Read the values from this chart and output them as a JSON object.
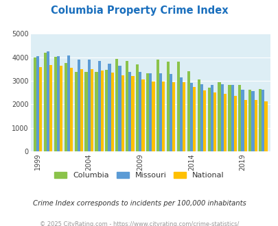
{
  "title": "Columbia Property Crime Index",
  "title_color": "#1a6fbd",
  "subtitle": "Crime Index corresponds to incidents per 100,000 inhabitants",
  "footer": "© 2025 CityRating.com - https://www.cityrating.com/crime-statistics/",
  "years": [
    1999,
    2000,
    2001,
    2002,
    2003,
    2004,
    2005,
    2006,
    2007,
    2008,
    2009,
    2010,
    2011,
    2012,
    2013,
    2014,
    2015,
    2016,
    2017,
    2018,
    2019,
    2020,
    2021
  ],
  "columbia": [
    3990,
    4210,
    4030,
    3750,
    3380,
    3390,
    3390,
    3480,
    3950,
    3860,
    3700,
    3330,
    3920,
    3830,
    3820,
    3420,
    3060,
    2700,
    2960,
    2840,
    2820,
    2620,
    2640
  ],
  "missouri": [
    4040,
    4250,
    4060,
    4080,
    3900,
    3920,
    3840,
    3740,
    3650,
    3380,
    3370,
    3330,
    3320,
    3300,
    3160,
    2930,
    2870,
    2830,
    2850,
    2830,
    2620,
    2580,
    2620
  ],
  "national": [
    3600,
    3670,
    3640,
    3570,
    3490,
    3500,
    3450,
    3350,
    3250,
    3210,
    3050,
    2970,
    2970,
    2950,
    2940,
    2730,
    2610,
    2500,
    2460,
    2370,
    2200,
    2200,
    2130
  ],
  "columbia_color": "#8bc34a",
  "missouri_color": "#5b9bd5",
  "national_color": "#ffc000",
  "bg_color": "#ddeef5",
  "ylim": [
    0,
    5000
  ],
  "yticks": [
    0,
    1000,
    2000,
    3000,
    4000,
    5000
  ],
  "xlabel_ticks": [
    1999,
    2004,
    2009,
    2014,
    2019
  ],
  "bar_width": 0.28,
  "figsize": [
    4.06,
    3.3
  ],
  "dpi": 100
}
